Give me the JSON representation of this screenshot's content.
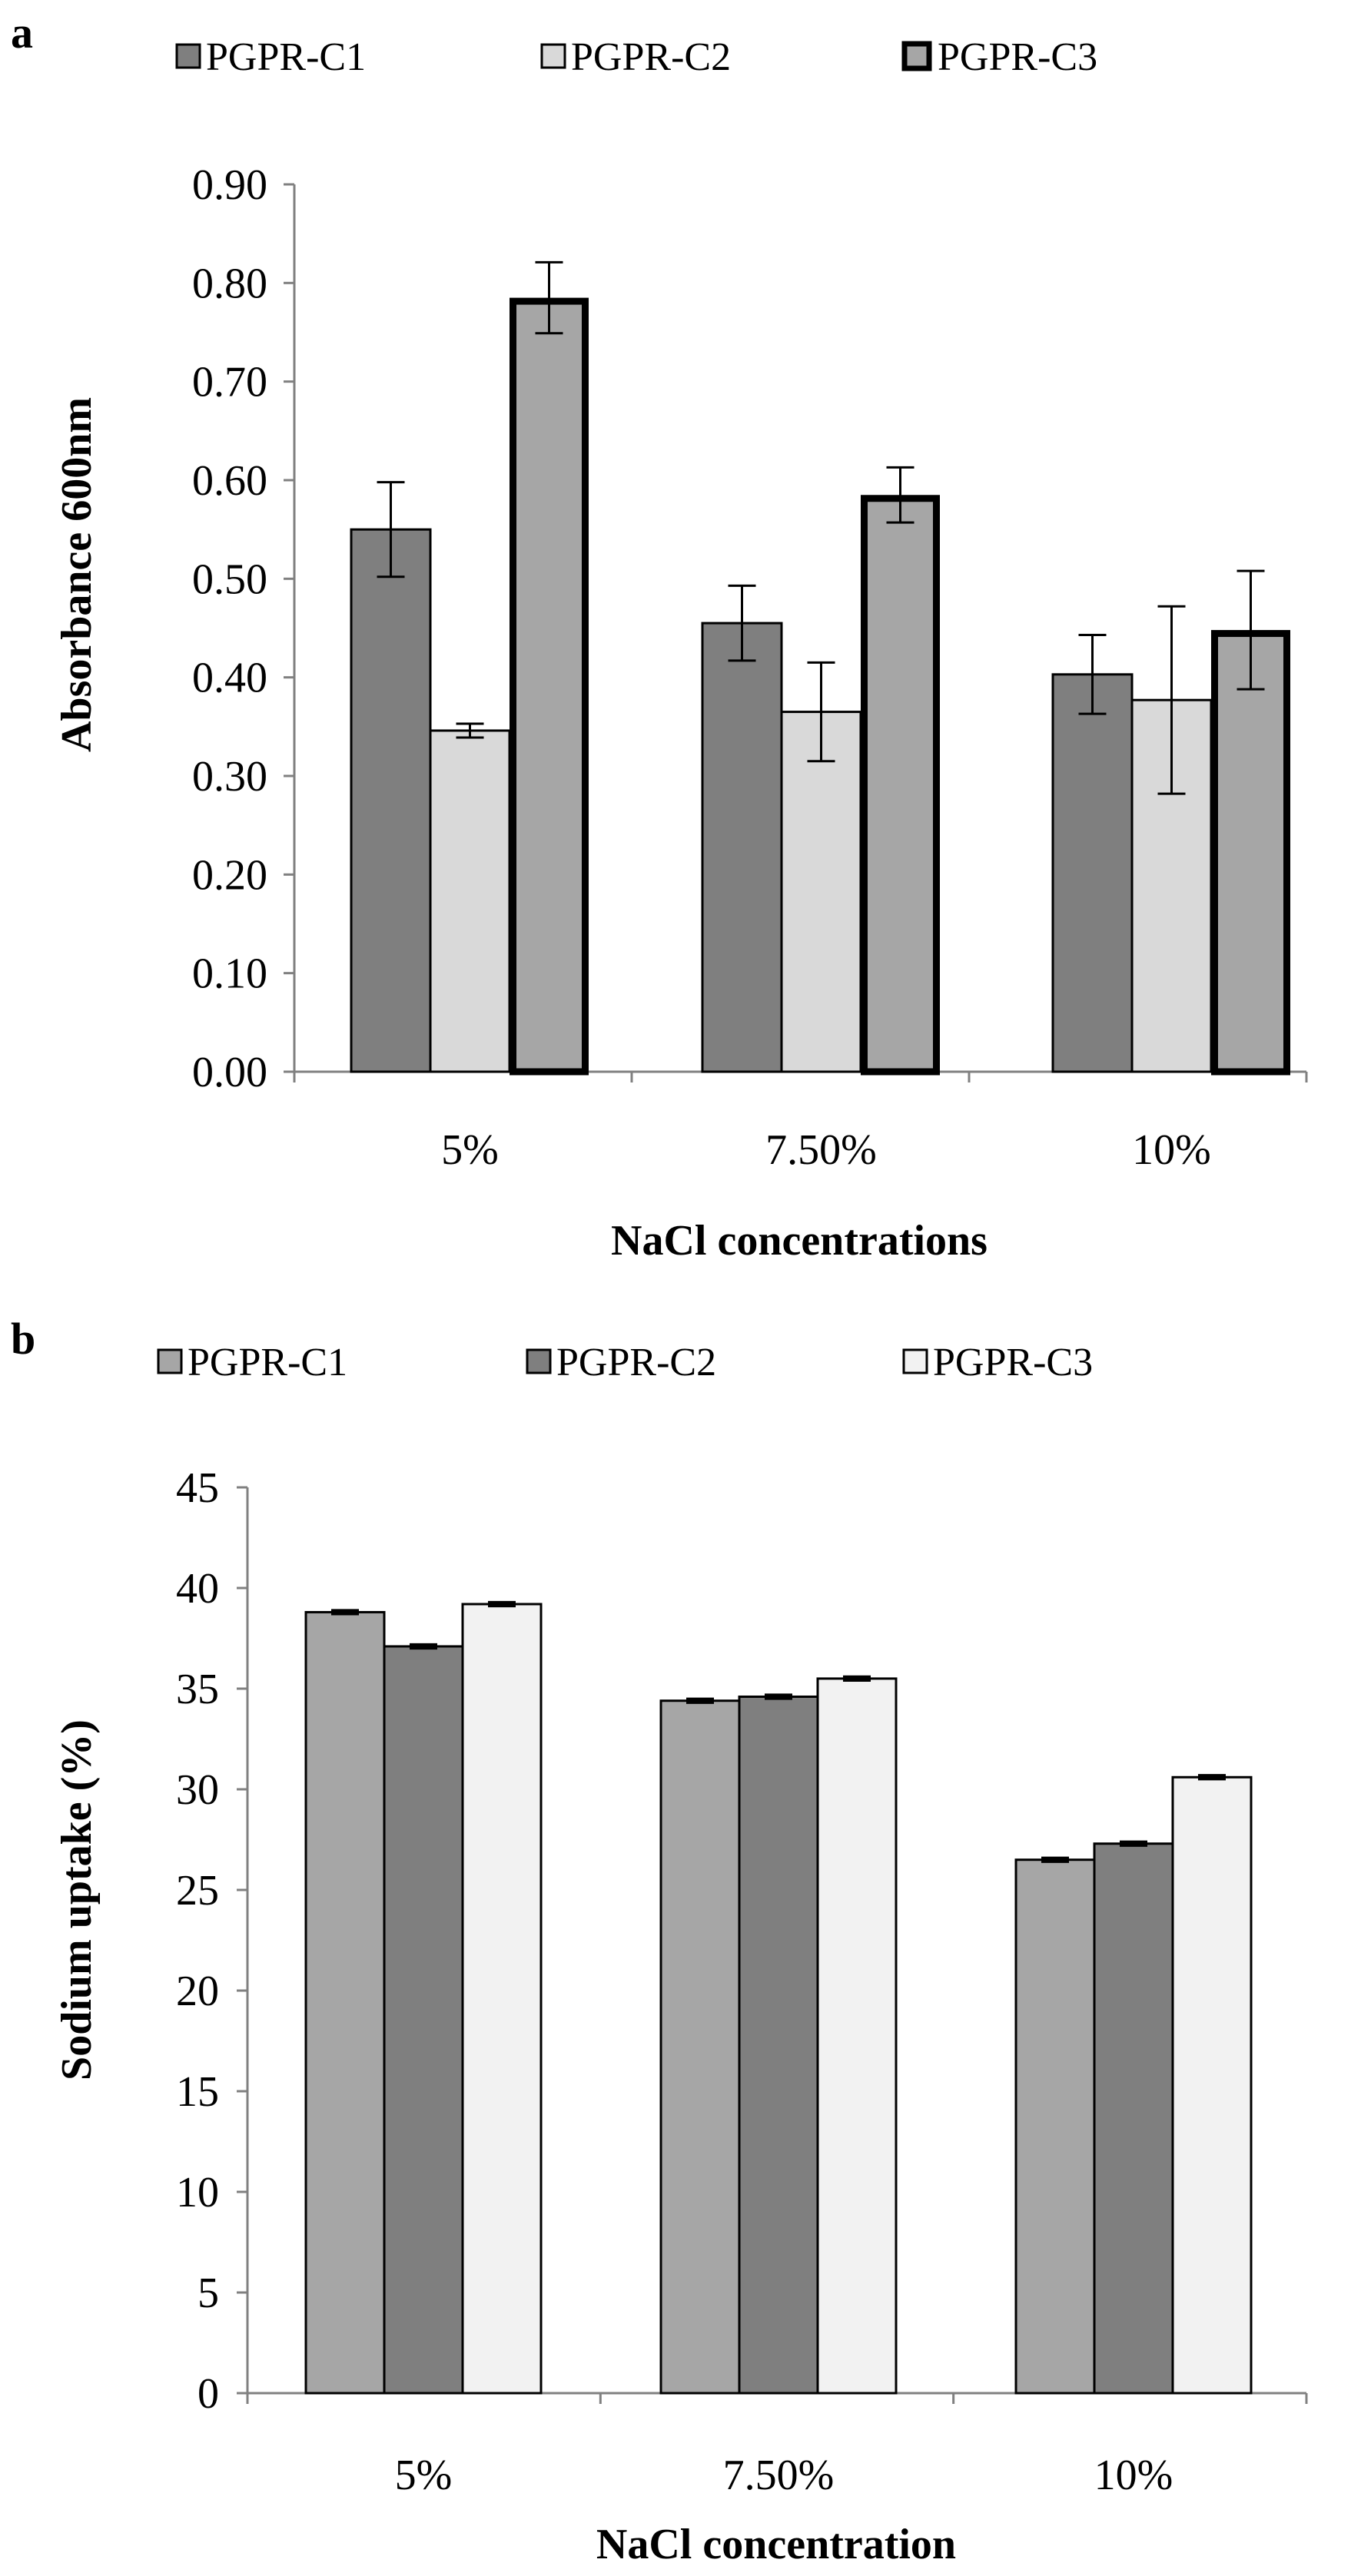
{
  "chart_data": [
    {
      "panel_label": "a",
      "type": "bar",
      "categories": [
        "5%",
        "7.50%",
        "10%"
      ],
      "series": [
        {
          "name": "PGPR-C1",
          "color": "#7f7f7f",
          "values": [
            0.55,
            0.455,
            0.403
          ],
          "errors": [
            0.048,
            0.038,
            0.04
          ]
        },
        {
          "name": "PGPR-C2",
          "color": "#d9d9d9",
          "values": [
            0.346,
            0.365,
            0.377
          ],
          "errors": [
            0.007,
            0.05,
            0.095
          ]
        },
        {
          "name": "PGPR-C3",
          "color": "#a6a6a6",
          "values": [
            0.785,
            0.585,
            0.448
          ],
          "errors": [
            0.036,
            0.028,
            0.06
          ]
        }
      ],
      "c3_outline": "#000000",
      "title": "",
      "xlabel": "NaCl concentrations",
      "ylabel": "Absorbance 600nm",
      "ylim": [
        0,
        0.9
      ],
      "yticks": [
        "0.00",
        "0.10",
        "0.20",
        "0.30",
        "0.40",
        "0.50",
        "0.60",
        "0.70",
        "0.80",
        "0.90"
      ],
      "legend_position": "top",
      "grid": false
    },
    {
      "panel_label": "b",
      "type": "bar",
      "categories": [
        "5%",
        "7.50%",
        "10%"
      ],
      "series": [
        {
          "name": "PGPR-C1",
          "color": "#a6a6a6",
          "values": [
            38.8,
            34.4,
            26.5
          ],
          "errors": [
            0.1,
            0.1,
            0.1
          ]
        },
        {
          "name": "PGPR-C2",
          "color": "#7f7f7f",
          "values": [
            37.1,
            34.6,
            27.3
          ],
          "errors": [
            0.1,
            0.1,
            0.1
          ]
        },
        {
          "name": "PGPR-C3",
          "color": "#f2f2f2",
          "values": [
            39.2,
            35.5,
            30.6
          ],
          "errors": [
            0.1,
            0.1,
            0.1
          ]
        }
      ],
      "title": "",
      "xlabel": "NaCl concentration",
      "ylabel": "Sodium uptake (%)",
      "ylim": [
        0,
        45
      ],
      "yticks": [
        "0",
        "5",
        "10",
        "15",
        "20",
        "25",
        "30",
        "35",
        "40",
        "45"
      ],
      "legend_position": "top",
      "grid": false
    }
  ]
}
